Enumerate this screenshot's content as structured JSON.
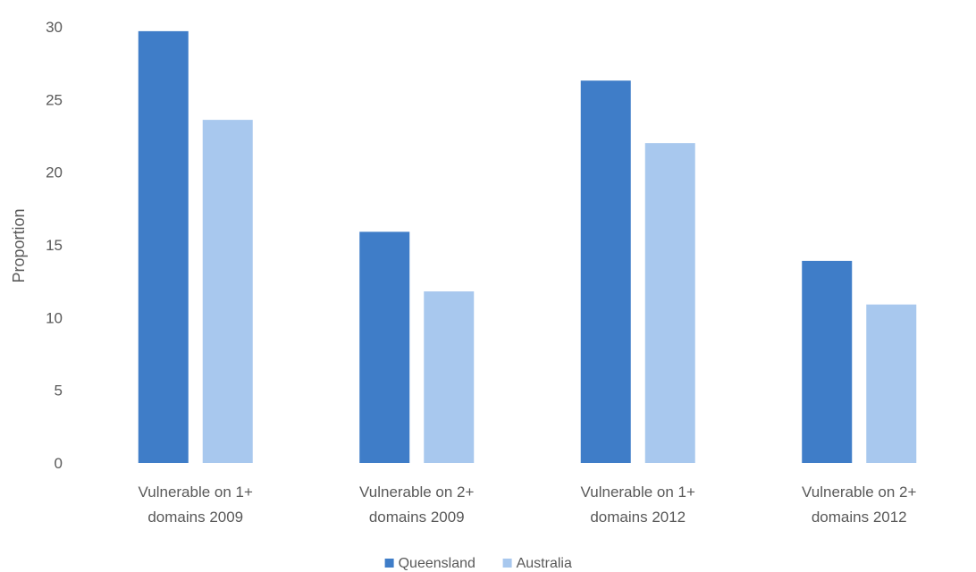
{
  "chart_data": {
    "type": "bar",
    "title": "",
    "xlabel": "",
    "ylabel": "Proportion",
    "ylim": [
      0,
      30
    ],
    "yticks": [
      0,
      5,
      10,
      15,
      20,
      25,
      30
    ],
    "grid": false,
    "legend_position": "bottom",
    "categories": [
      [
        "Vulnerable on 1+",
        "domains 2009"
      ],
      [
        "Vulnerable on 2+",
        "domains 2009"
      ],
      [
        "Vulnerable on 1+",
        "domains 2012"
      ],
      [
        "Vulnerable on 2+",
        "domains 2012"
      ]
    ],
    "series": [
      {
        "name": "Queensland",
        "color": "#3f7dc8",
        "values": [
          29.7,
          15.9,
          26.3,
          13.9
        ]
      },
      {
        "name": "Australia",
        "color": "#a8c8ee",
        "values": [
          23.6,
          11.8,
          22.0,
          10.9
        ]
      }
    ]
  }
}
